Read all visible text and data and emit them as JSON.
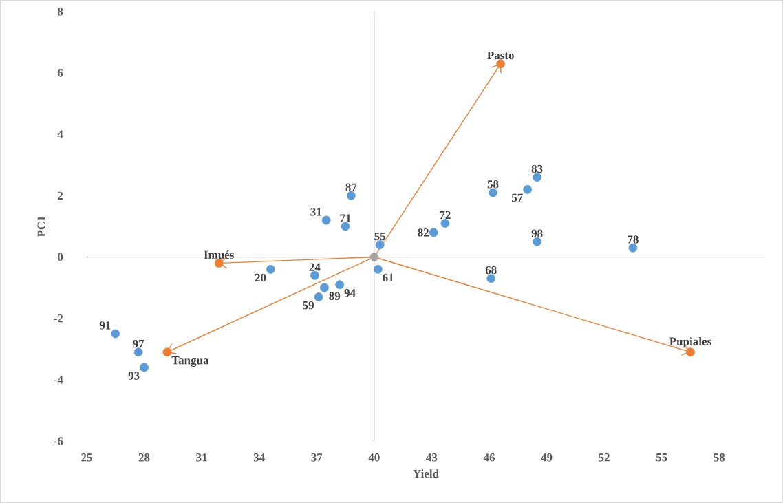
{
  "chart_data": {
    "type": "scatter",
    "xlabel": "Yield",
    "ylabel": "PC1",
    "xlim": [
      25,
      60.4
    ],
    "ylim": [
      -6,
      8
    ],
    "xticks": [
      25,
      28,
      31,
      34,
      37,
      40,
      43,
      46,
      49,
      52,
      55,
      58
    ],
    "yticks": [
      -6,
      -4,
      -2,
      0,
      2,
      4,
      6,
      8
    ],
    "marker": "circle",
    "ref_lines": [
      {
        "axis": "x",
        "value": 40,
        "color": "#bfbfbf"
      },
      {
        "axis": "y",
        "value": 0,
        "color": "#bfbfbf"
      }
    ],
    "series": [
      {
        "type": "line",
        "color": "#ed7d31",
        "marker": "none",
        "x": [
          40,
          31.9
        ],
        "values": [
          0,
          -0.2
        ]
      },
      {
        "type": "line",
        "color": "#ed7d31",
        "marker": "none",
        "x": [
          40,
          46.6
        ],
        "values": [
          0,
          6.3
        ]
      },
      {
        "type": "line",
        "color": "#ed7d31",
        "marker": "none",
        "x": [
          40,
          29.2
        ],
        "values": [
          0,
          -3.1
        ]
      },
      {
        "type": "line",
        "color": "#ed7d31",
        "marker": "none",
        "x": [
          40,
          56.5
        ],
        "values": [
          0,
          -3.1
        ]
      },
      {
        "color": "#5b9bd5",
        "x": [
          26.5,
          27.7,
          28.0,
          34.6,
          36.9,
          37.1,
          37.4,
          38.2,
          37.5,
          38.5,
          38.8,
          40.3,
          40.2,
          43.1,
          43.7,
          46.2,
          46.1,
          48.0,
          48.5,
          48.5,
          53.5
        ],
        "values": [
          -2.5,
          -3.1,
          -3.6,
          -0.4,
          -0.6,
          -1.3,
          -1.0,
          -0.9,
          1.2,
          1.0,
          2.0,
          0.4,
          -0.4,
          0.8,
          1.1,
          2.1,
          -0.7,
          2.2,
          2.6,
          0.5,
          0.3
        ]
      },
      {
        "color": "#ed7d31",
        "x": [
          31.9,
          46.6,
          29.2,
          56.5
        ],
        "values": [
          -0.2,
          6.3,
          -3.1,
          -3.1
        ]
      },
      {
        "color": "#a5a5a5",
        "x": [
          40
        ],
        "values": [
          0
        ]
      }
    ],
    "annotations": [
      {
        "text": "91",
        "x": 26.5,
        "y": -2.5
      },
      {
        "text": "97",
        "x": 27.7,
        "y": -3.1
      },
      {
        "text": "93",
        "x": 28.0,
        "y": -3.6
      },
      {
        "text": "20",
        "x": 34.6,
        "y": -0.4
      },
      {
        "text": "24",
        "x": 36.9,
        "y": -0.6
      },
      {
        "text": "59",
        "x": 37.1,
        "y": -1.3
      },
      {
        "text": "89",
        "x": 37.4,
        "y": -1.0
      },
      {
        "text": "94",
        "x": 38.2,
        "y": -0.9
      },
      {
        "text": "31",
        "x": 37.5,
        "y": 1.2
      },
      {
        "text": "71",
        "x": 38.5,
        "y": 1.0
      },
      {
        "text": "87",
        "x": 38.8,
        "y": 2.0
      },
      {
        "text": "55",
        "x": 40.3,
        "y": 0.4
      },
      {
        "text": "61",
        "x": 40.2,
        "y": -0.4
      },
      {
        "text": "82",
        "x": 43.1,
        "y": 0.8
      },
      {
        "text": "72",
        "x": 43.7,
        "y": 1.1
      },
      {
        "text": "58",
        "x": 46.2,
        "y": 2.1
      },
      {
        "text": "68",
        "x": 46.1,
        "y": -0.7
      },
      {
        "text": "57",
        "x": 48.0,
        "y": 2.2
      },
      {
        "text": "83",
        "x": 48.5,
        "y": 2.6
      },
      {
        "text": "98",
        "x": 48.5,
        "y": 0.5
      },
      {
        "text": "78",
        "x": 53.5,
        "y": 0.3
      },
      {
        "text": "Imués",
        "x": 31.9,
        "y": -0.2
      },
      {
        "text": "Pasto",
        "x": 46.6,
        "y": 6.3
      },
      {
        "text": "Tangua",
        "x": 29.2,
        "y": -3.1
      },
      {
        "text": "Pupiales",
        "x": 56.5,
        "y": -3.1
      }
    ]
  }
}
